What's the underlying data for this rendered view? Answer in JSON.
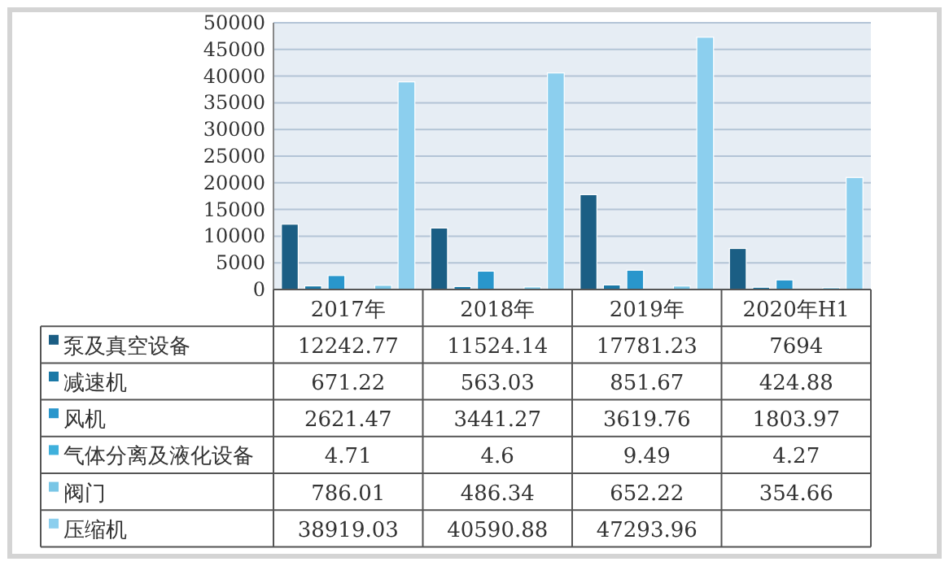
{
  "chart_data": {
    "type": "bar",
    "categories": [
      "2017年",
      "2018年",
      "2019年",
      "2020年H1"
    ],
    "series": [
      {
        "name": "泵及真空设备",
        "color": "#1b5e84",
        "values": [
          12242.77,
          11524.14,
          17781.23,
          7694
        ],
        "value_labels": [
          "12242.77",
          "11524.14",
          "17781.23",
          "7694"
        ]
      },
      {
        "name": "减速机",
        "color": "#1a78a6",
        "values": [
          671.22,
          563.03,
          851.67,
          424.88
        ],
        "value_labels": [
          "671.22",
          "563.03",
          "851.67",
          "424.88"
        ]
      },
      {
        "name": "风机",
        "color": "#2996cc",
        "values": [
          2621.47,
          3441.27,
          3619.76,
          1803.97
        ],
        "value_labels": [
          "2621.47",
          "3441.27",
          "3619.76",
          "1803.97"
        ]
      },
      {
        "name": "气体分离及液化设备",
        "color": "#3fb0dc",
        "values": [
          4.71,
          4.6,
          9.49,
          4.27
        ],
        "value_labels": [
          "4.71",
          "4.6",
          "9.49",
          "4.27"
        ]
      },
      {
        "name": "阀门",
        "color": "#79c6e6",
        "values": [
          786.01,
          486.34,
          652.22,
          354.66
        ],
        "value_labels": [
          "786.01",
          "486.34",
          "652.22",
          "354.66"
        ]
      },
      {
        "name": "压缩机",
        "color": "#8ccfee",
        "values": [
          38919.03,
          40590.88,
          47293.96,
          21000
        ],
        "value_labels": [
          "38919.03",
          "40590.88",
          "47293.96",
          null
        ]
      }
    ],
    "ylim": [
      0,
      50000
    ],
    "yticks": [
      0,
      5000,
      10000,
      15000,
      20000,
      25000,
      30000,
      35000,
      40000,
      45000,
      50000
    ],
    "grid": "y",
    "legend": "bottom"
  }
}
